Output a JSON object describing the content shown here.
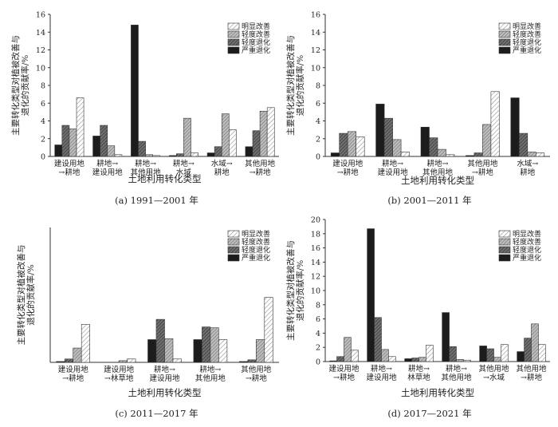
{
  "chart_data": [
    {
      "type": "bar",
      "caption": "(a) 1991—2001 年",
      "xlabel": "土地利用转化类型",
      "ylabel": "主要转化类型对植被改善与退化的贡献率/%",
      "ylim": [
        0,
        16
      ],
      "yticks": [
        0,
        2,
        4,
        6,
        8,
        10,
        12,
        14,
        16
      ],
      "categories": [
        [
          "建设用地",
          "→耕地"
        ],
        [
          "耕地→",
          "建设用地"
        ],
        [
          "耕地→",
          "其他用地"
        ],
        [
          "耕地→",
          "水域"
        ],
        [
          "水域→",
          "耕地"
        ],
        [
          "其他用地",
          "→耕地"
        ]
      ],
      "legend_position": "top-right",
      "series": [
        {
          "name": "严重退化",
          "values": [
            1.3,
            2.3,
            14.8,
            0.1,
            0.4,
            1.1
          ]
        },
        {
          "name": "轻度退化",
          "values": [
            3.5,
            3.5,
            1.7,
            0.3,
            1.1,
            2.9
          ]
        },
        {
          "name": "轻度改善",
          "values": [
            3.1,
            1.2,
            0.2,
            4.3,
            4.8,
            5.1
          ]
        },
        {
          "name": "明显改善",
          "values": [
            6.6,
            0.2,
            0.1,
            0.4,
            3.0,
            5.5
          ]
        }
      ]
    },
    {
      "type": "bar",
      "caption": "(b) 2001—2011 年",
      "xlabel": "土地利用转化类型",
      "ylabel": "主要转化类型对植被改善与退化的贡献率/%",
      "ylim": [
        0,
        16
      ],
      "yticks": [
        0,
        2,
        4,
        6,
        8,
        10,
        12,
        14,
        16
      ],
      "categories": [
        [
          "建设用地",
          "→耕地"
        ],
        [
          "耕地→",
          "建设用地"
        ],
        [
          "耕地→",
          "其他用地"
        ],
        [
          "其他用地",
          "→耕地"
        ],
        [
          "水域→",
          "耕地"
        ]
      ],
      "legend_position": "top-right",
      "series": [
        {
          "name": "严重退化",
          "values": [
            0.4,
            5.9,
            3.3,
            0.1,
            6.6
          ]
        },
        {
          "name": "轻度退化",
          "values": [
            2.6,
            4.3,
            2.1,
            0.4,
            2.6
          ]
        },
        {
          "name": "轻度改善",
          "values": [
            2.8,
            1.9,
            0.8,
            3.6,
            0.5
          ]
        },
        {
          "name": "明显改善",
          "values": [
            2.2,
            0.5,
            0.2,
            7.3,
            0.4
          ]
        }
      ]
    },
    {
      "type": "bar",
      "caption": "(c) 2011—2017 年",
      "xlabel": "土地利用转化类型",
      "ylabel": "主要转化类型对植被改善与退化的贡献率/%",
      "ylim": [
        0,
        16
      ],
      "yticks": [],
      "categories": [
        [
          "建设用地",
          "→耕地"
        ],
        [
          "建设用地",
          "→林草地"
        ],
        [
          "耕地→",
          "建设用地"
        ],
        [
          "耕地→",
          "其他用地"
        ],
        [
          "其他用地",
          "→耕地"
        ]
      ],
      "legend_position": "top-right",
      "series": [
        {
          "name": "严重退化",
          "values": [
            0.1,
            0.0,
            2.7,
            2.7,
            0.1
          ]
        },
        {
          "name": "轻度退化",
          "values": [
            0.4,
            0.0,
            5.1,
            4.2,
            0.3
          ]
        },
        {
          "name": "轻度改善",
          "values": [
            1.7,
            0.2,
            2.8,
            4.1,
            2.7
          ]
        },
        {
          "name": "明显改善",
          "values": [
            4.5,
            0.4,
            0.4,
            2.7,
            7.7
          ]
        }
      ]
    },
    {
      "type": "bar",
      "caption": "(d) 2017—2021 年",
      "xlabel": "土地利用转化类型",
      "ylabel": "主要转化类型对植被改善与退化的贡献率/%",
      "ylim": [
        0,
        20
      ],
      "yticks": [
        0,
        2,
        4,
        6,
        8,
        10,
        12,
        14,
        16,
        18,
        20
      ],
      "categories": [
        [
          "建设用地",
          "→耕地"
        ],
        [
          "耕地→",
          "建设用地"
        ],
        [
          "耕地→",
          "林草地"
        ],
        [
          "耕地→",
          "其他用地"
        ],
        [
          "其他用地",
          "→水域"
        ],
        [
          "其他用地",
          "→耕地"
        ]
      ],
      "legend_position": "top-right",
      "series": [
        {
          "name": "严重退化",
          "values": [
            0.1,
            18.7,
            0.4,
            6.9,
            2.2,
            1.4
          ]
        },
        {
          "name": "轻度退化",
          "values": [
            0.7,
            6.2,
            0.5,
            2.1,
            1.8,
            3.3
          ]
        },
        {
          "name": "轻度改善",
          "values": [
            3.4,
            1.7,
            0.6,
            0.3,
            0.6,
            5.3
          ]
        },
        {
          "name": "明显改善",
          "values": [
            1.6,
            0.7,
            2.3,
            0.2,
            2.4,
            2.4
          ]
        }
      ]
    }
  ]
}
